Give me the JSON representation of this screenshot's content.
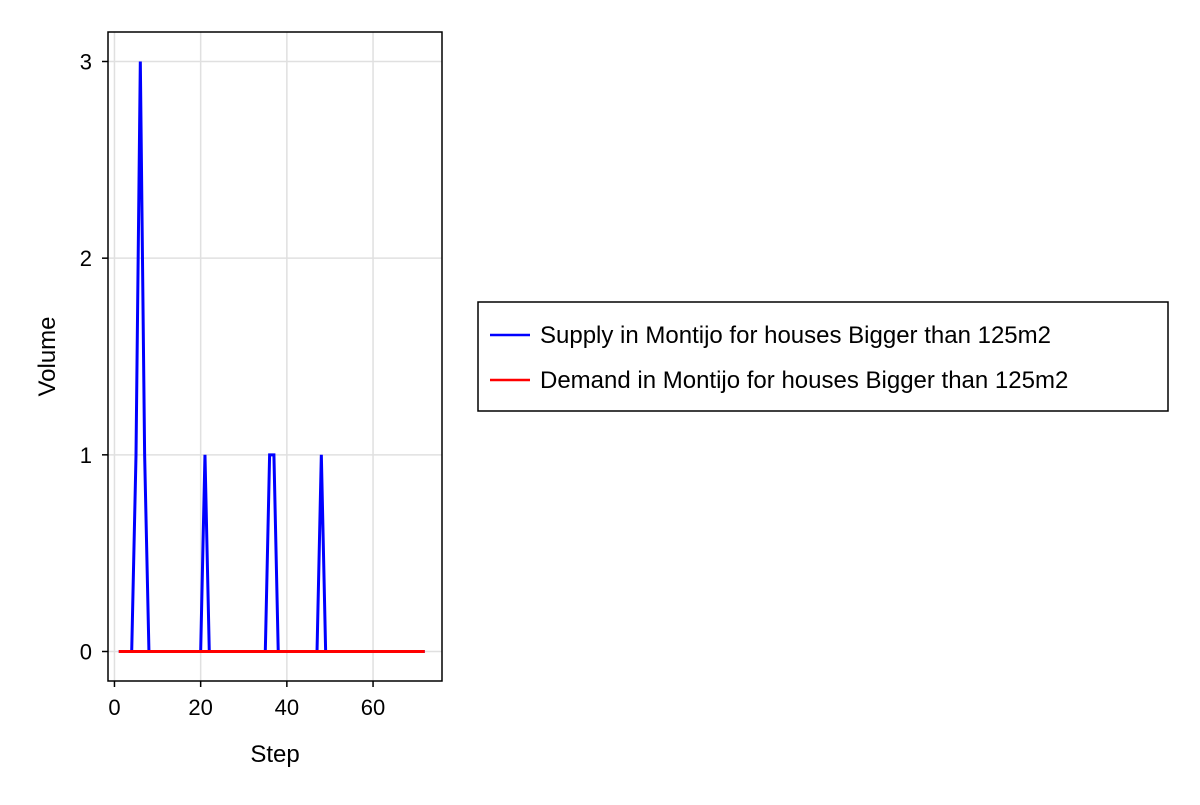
{
  "chart_data": {
    "type": "line",
    "xlabel": "Step",
    "ylabel": "Volume",
    "xlim": [
      -1.5,
      76
    ],
    "ylim": [
      -0.15,
      3.15
    ],
    "xticks": [
      0,
      20,
      40,
      60
    ],
    "yticks": [
      0,
      1,
      2,
      3
    ],
    "grid": true,
    "legend_position": "right",
    "series": [
      {
        "name": "Supply in Montijo for houses Bigger than 125m2",
        "color": "#0000ff",
        "x": [
          1,
          2,
          3,
          4,
          5,
          6,
          7,
          8,
          9,
          10,
          11,
          12,
          13,
          14,
          15,
          16,
          17,
          18,
          19,
          20,
          21,
          22,
          23,
          24,
          25,
          26,
          27,
          28,
          29,
          30,
          31,
          32,
          33,
          34,
          35,
          36,
          37,
          38,
          39,
          40,
          41,
          42,
          43,
          44,
          45,
          46,
          47,
          48,
          49,
          50,
          51,
          52,
          53,
          54,
          55,
          56,
          57,
          58,
          59,
          60,
          61,
          62,
          63,
          64,
          65,
          66,
          67,
          68,
          69,
          70,
          71,
          72
        ],
        "values": [
          0,
          0,
          0,
          0,
          1,
          3,
          1,
          0,
          0,
          0,
          0,
          0,
          0,
          0,
          0,
          0,
          0,
          0,
          0,
          0,
          1,
          0,
          0,
          0,
          0,
          0,
          0,
          0,
          0,
          0,
          0,
          0,
          0,
          0,
          0,
          1,
          1,
          0,
          0,
          0,
          0,
          0,
          0,
          0,
          0,
          0,
          0,
          1,
          0,
          0,
          0,
          0,
          0,
          0,
          0,
          0,
          0,
          0,
          0,
          0,
          0,
          0,
          0,
          0,
          0,
          0,
          0,
          0,
          0,
          0,
          0,
          0
        ]
      },
      {
        "name": "Demand in Montijo for houses Bigger than 125m2",
        "color": "#ff0000",
        "x": [
          1,
          2,
          3,
          4,
          5,
          6,
          7,
          8,
          9,
          10,
          11,
          12,
          13,
          14,
          15,
          16,
          17,
          18,
          19,
          20,
          21,
          22,
          23,
          24,
          25,
          26,
          27,
          28,
          29,
          30,
          31,
          32,
          33,
          34,
          35,
          36,
          37,
          38,
          39,
          40,
          41,
          42,
          43,
          44,
          45,
          46,
          47,
          48,
          49,
          50,
          51,
          52,
          53,
          54,
          55,
          56,
          57,
          58,
          59,
          60,
          61,
          62,
          63,
          64,
          65,
          66,
          67,
          68,
          69,
          70,
          71,
          72
        ],
        "values": [
          0,
          0,
          0,
          0,
          0,
          0,
          0,
          0,
          0,
          0,
          0,
          0,
          0,
          0,
          0,
          0,
          0,
          0,
          0,
          0,
          0,
          0,
          0,
          0,
          0,
          0,
          0,
          0,
          0,
          0,
          0,
          0,
          0,
          0,
          0,
          0,
          0,
          0,
          0,
          0,
          0,
          0,
          0,
          0,
          0,
          0,
          0,
          0,
          0,
          0,
          0,
          0,
          0,
          0,
          0,
          0,
          0,
          0,
          0,
          0,
          0,
          0,
          0,
          0,
          0,
          0,
          0,
          0,
          0,
          0,
          0,
          0
        ]
      }
    ]
  }
}
